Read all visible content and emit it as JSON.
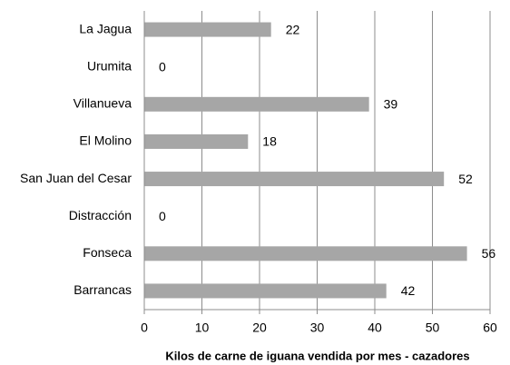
{
  "chart_data": {
    "type": "barh",
    "categories": [
      "La Jagua",
      "Urumita",
      "Villanueva",
      "El Molino",
      "San Juan del Cesar",
      "Distracción",
      "Fonseca",
      "Barrancas"
    ],
    "values": [
      22,
      0,
      39,
      18,
      52,
      0,
      56,
      42
    ],
    "color": "#a6a6a6",
    "xlabel": "Kilos de carne de iguana vendida por mes - cazadores",
    "xlim": [
      0,
      60
    ],
    "xticks": [
      0,
      10,
      20,
      30,
      40,
      50,
      60
    ],
    "grid": true
  }
}
